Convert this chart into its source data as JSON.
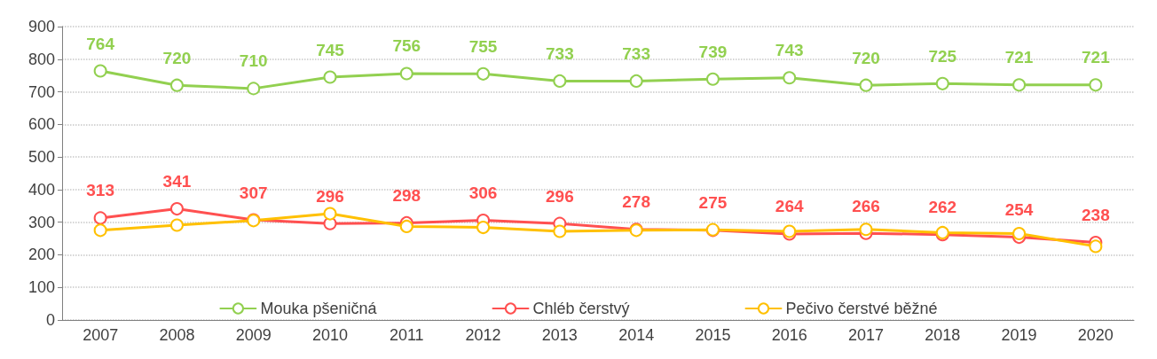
{
  "chart_data": {
    "type": "line",
    "categories": [
      "2007",
      "2008",
      "2009",
      "2010",
      "2011",
      "2012",
      "2013",
      "2014",
      "2015",
      "2016",
      "2017",
      "2018",
      "2019",
      "2020"
    ],
    "series": [
      {
        "name": "Mouka pšeničná",
        "color": "#92d050",
        "values": [
          764,
          720,
          710,
          745,
          756,
          755,
          733,
          733,
          739,
          743,
          720,
          725,
          721,
          721
        ],
        "value_labels": [
          "764",
          "720",
          "710",
          "745",
          "756",
          "755",
          "733",
          "733",
          "739",
          "743",
          "720",
          "725",
          "721",
          "721"
        ]
      },
      {
        "name": "Chléb čerstvý",
        "color": "#ff5050",
        "values": [
          313,
          341,
          307,
          296,
          298,
          306,
          296,
          278,
          275,
          264,
          266,
          262,
          254,
          238
        ],
        "value_labels": [
          "313",
          "341",
          "307",
          "296",
          "298",
          "306",
          "296",
          "278",
          "275",
          "264",
          "266",
          "262",
          "254",
          "238"
        ]
      },
      {
        "name": "Pečivo čerstvé běžné",
        "color": "#ffc000",
        "values": [
          275,
          291,
          305,
          326,
          287,
          284,
          272,
          275,
          277,
          272,
          278,
          268,
          265,
          226
        ]
      }
    ],
    "ylim": [
      0,
      900
    ],
    "yticks": [
      0,
      100,
      200,
      300,
      400,
      500,
      600,
      700,
      800,
      900
    ],
    "grid": "y",
    "legend": "bottom",
    "marker": "circle",
    "line_style": "solid"
  }
}
